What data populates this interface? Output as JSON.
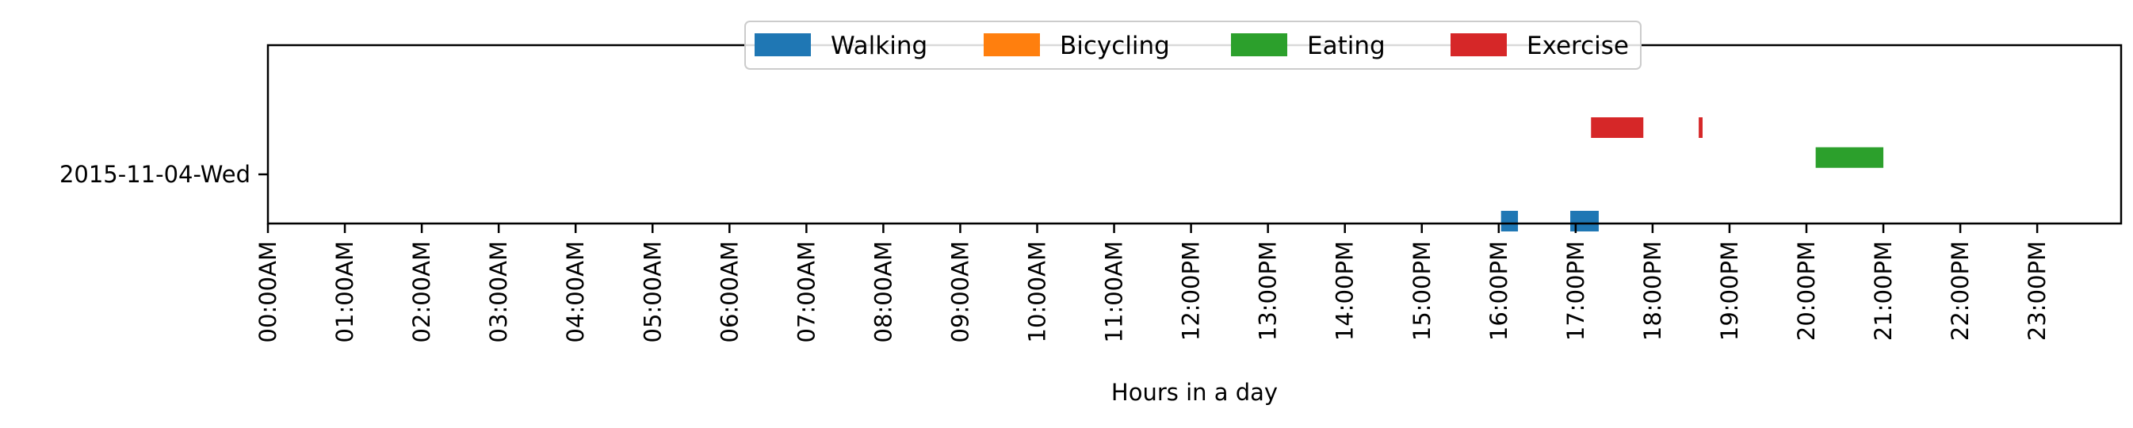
{
  "chart_data": {
    "type": "bar",
    "orientation": "horizontal-timeline",
    "xlabel": "Hours in a day",
    "ylabel": "",
    "xlim": [
      0,
      24
    ],
    "x_ticks": [
      "00:00AM",
      "01:00AM",
      "02:00AM",
      "03:00AM",
      "04:00AM",
      "05:00AM",
      "06:00AM",
      "07:00AM",
      "08:00AM",
      "09:00AM",
      "10:00AM",
      "11:00AM",
      "12:00PM",
      "13:00PM",
      "14:00PM",
      "15:00PM",
      "16:00PM",
      "17:00PM",
      "18:00PM",
      "19:00PM",
      "20:00PM",
      "21:00PM",
      "22:00PM",
      "23:00PM"
    ],
    "categories": [
      "2015-11-04-Wed"
    ],
    "grid": false,
    "legend_position": "top-center",
    "series": [
      {
        "name": "Walking",
        "color": "#1f77b4",
        "lane": -0.25,
        "intervals": [
          [
            16.03,
            16.25
          ],
          [
            16.93,
            17.3
          ]
        ]
      },
      {
        "name": "Bicycling",
        "color": "#ff7f0e",
        "lane": 0.0,
        "intervals": []
      },
      {
        "name": "Eating",
        "color": "#2ca02c",
        "lane": 0.09,
        "intervals": [
          [
            20.12,
            21.0
          ]
        ]
      },
      {
        "name": "Exercise",
        "color": "#d62728",
        "lane": 0.25,
        "intervals": [
          [
            17.2,
            17.88
          ],
          [
            18.6,
            18.65
          ]
        ]
      }
    ]
  }
}
